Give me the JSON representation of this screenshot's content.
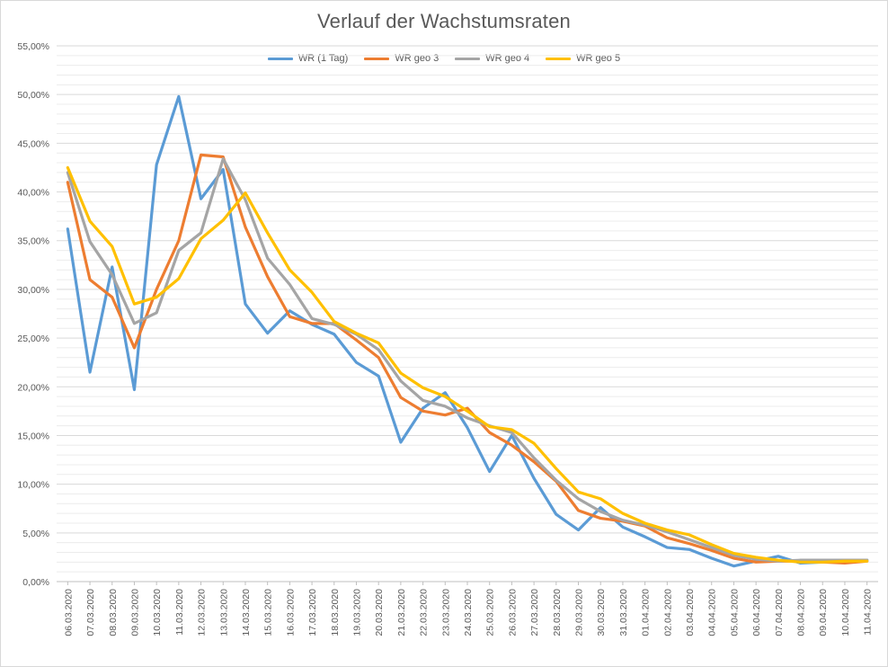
{
  "chart_data": {
    "type": "line",
    "title": "Verlauf der Wachstumsraten",
    "xlabel": "",
    "ylabel": "",
    "ylim": [
      0,
      0.55
    ],
    "ytick_labels": [
      "0,00%",
      "5,00%",
      "10,00%",
      "15,00%",
      "20,00%",
      "25,00%",
      "30,00%",
      "35,00%",
      "40,00%",
      "45,00%",
      "50,00%",
      "55,00%"
    ],
    "grid": true,
    "legend_position": "top",
    "categories": [
      "06.03.2020",
      "07.03.2020",
      "08.03.2020",
      "09.03.2020",
      "10.03.2020",
      "11.03.2020",
      "12.03.2020",
      "13.03.2020",
      "14.03.2020",
      "15.03.2020",
      "16.03.2020",
      "17.03.2020",
      "18.03.2020",
      "19.03.2020",
      "20.03.2020",
      "21.03.2020",
      "22.03.2020",
      "23.03.2020",
      "24.03.2020",
      "25.03.2020",
      "26.03.2020",
      "27.03.2020",
      "28.03.2020",
      "29.03.2020",
      "30.03.2020",
      "31.03.2020",
      "01.04.2020",
      "02.04.2020",
      "03.04.2020",
      "04.04.2020",
      "05.04.2020",
      "06.04.2020",
      "07.04.2020",
      "08.04.2020",
      "09.04.2020",
      "10.04.2020",
      "11.04.2020"
    ],
    "series": [
      {
        "name": "WR (1 Tag)",
        "color": "#5b9bd5",
        "values": [
          0.362,
          0.215,
          0.323,
          0.197,
          0.428,
          0.498,
          0.393,
          0.423,
          0.285,
          0.255,
          0.278,
          0.264,
          0.254,
          0.225,
          0.211,
          0.143,
          0.178,
          0.194,
          0.158,
          0.113,
          0.15,
          0.106,
          0.069,
          0.053,
          0.076,
          0.056,
          0.046,
          0.035,
          0.033,
          0.024,
          0.016,
          0.021,
          0.026,
          0.019,
          0.02,
          0.022,
          0.022
        ]
      },
      {
        "name": "WR geo 3",
        "color": "#ed7d31",
        "values": [
          0.41,
          0.31,
          0.292,
          0.24,
          0.3,
          0.35,
          0.438,
          0.436,
          0.364,
          0.313,
          0.272,
          0.265,
          0.265,
          0.248,
          0.23,
          0.189,
          0.175,
          0.171,
          0.178,
          0.153,
          0.14,
          0.123,
          0.103,
          0.073,
          0.065,
          0.062,
          0.057,
          0.045,
          0.039,
          0.032,
          0.024,
          0.02,
          0.021,
          0.021,
          0.02,
          0.019,
          0.021
        ]
      },
      {
        "name": "WR geo 4",
        "color": "#a5a5a5",
        "values": [
          0.42,
          0.349,
          0.315,
          0.265,
          0.276,
          0.34,
          0.358,
          0.434,
          0.392,
          0.332,
          0.305,
          0.27,
          0.264,
          0.254,
          0.238,
          0.206,
          0.186,
          0.18,
          0.168,
          0.16,
          0.153,
          0.127,
          0.104,
          0.085,
          0.072,
          0.063,
          0.058,
          0.051,
          0.043,
          0.035,
          0.027,
          0.023,
          0.021,
          0.022,
          0.022,
          0.022,
          0.022
        ]
      },
      {
        "name": "WR geo 5",
        "color": "#ffc000",
        "values": [
          0.425,
          0.37,
          0.344,
          0.285,
          0.292,
          0.311,
          0.352,
          0.371,
          0.399,
          0.358,
          0.32,
          0.297,
          0.267,
          0.255,
          0.245,
          0.214,
          0.199,
          0.19,
          0.175,
          0.159,
          0.156,
          0.142,
          0.116,
          0.092,
          0.085,
          0.07,
          0.06,
          0.053,
          0.048,
          0.038,
          0.029,
          0.025,
          0.022,
          0.02,
          0.02,
          0.021,
          0.021
        ]
      }
    ]
  }
}
